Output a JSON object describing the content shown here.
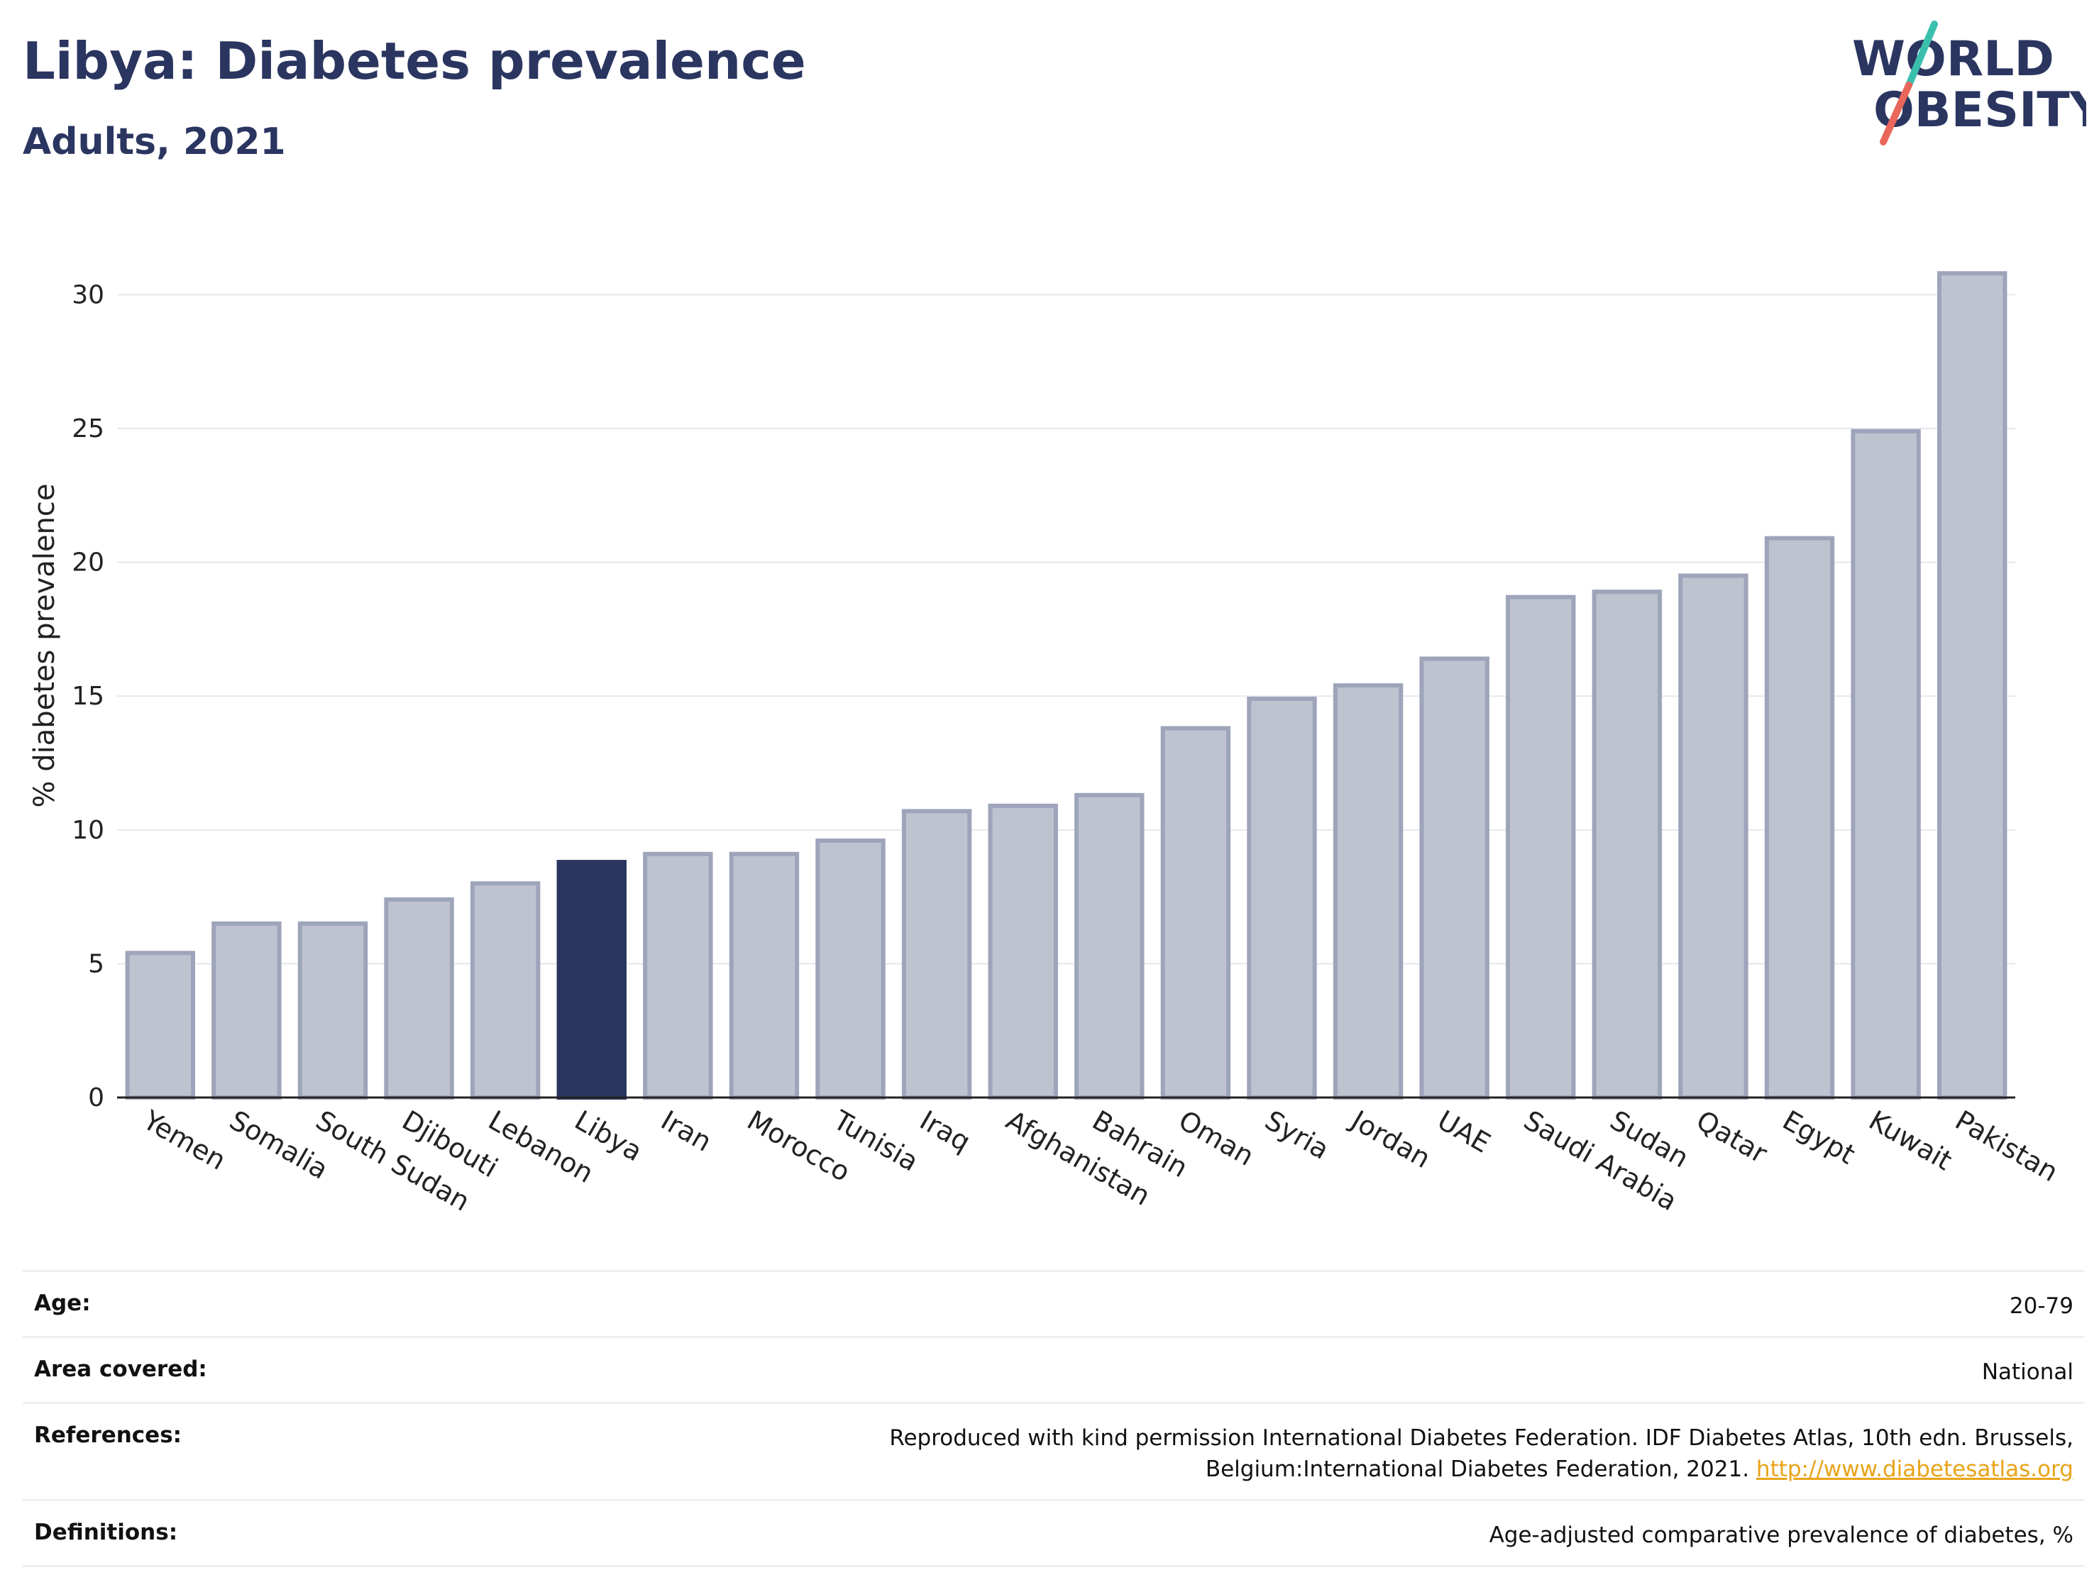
{
  "header": {
    "title": "Libya: Diabetes prevalence",
    "subtitle": "Adults, 2021"
  },
  "logo": {
    "line1": "WORLD",
    "line2": "OBESITY"
  },
  "colors": {
    "highlight": "#2a3560",
    "bar_fill": "#bfc3d0",
    "bar_stroke": "#9ea4ba",
    "title": "#2a3560",
    "link": "#e8a419"
  },
  "chart_data": {
    "type": "bar",
    "title": "Libya: Diabetes prevalence",
    "subtitle": "Adults, 2021",
    "xlabel": "",
    "ylabel": "% diabetes prevalence",
    "ylim": [
      0,
      32
    ],
    "yticks": [
      0,
      5,
      10,
      15,
      20,
      25,
      30
    ],
    "grid": true,
    "highlight": "Libya",
    "categories": [
      "Yemen",
      "Somalia",
      "South Sudan",
      "Djibouti",
      "Lebanon",
      "Libya",
      "Iran",
      "Morocco",
      "Tunisia",
      "Iraq",
      "Afghanistan",
      "Bahrain",
      "Oman",
      "Syria",
      "Jordan",
      "UAE",
      "Saudi Arabia",
      "Sudan",
      "Qatar",
      "Egypt",
      "Kuwait",
      "Pakistan"
    ],
    "values": [
      5.4,
      6.5,
      6.5,
      7.4,
      8.0,
      8.8,
      9.1,
      9.1,
      9.6,
      10.7,
      10.9,
      11.3,
      13.8,
      14.9,
      15.4,
      16.4,
      18.7,
      18.9,
      19.5,
      20.9,
      24.9,
      30.8
    ]
  },
  "meta": [
    {
      "key": "Age:",
      "value": "20-79"
    },
    {
      "key": "Area covered:",
      "value": "National"
    },
    {
      "key": "References:",
      "value": "Reproduced with kind permission International Diabetes Federation.  IDF Diabetes Atlas, 10th edn. Brussels, Belgium:International Diabetes Federation, 2021.",
      "link": "http://www.diabetesatlas.org"
    },
    {
      "key": "Definitions:",
      "value": "Age-adjusted comparative prevalence of diabetes, %"
    }
  ]
}
